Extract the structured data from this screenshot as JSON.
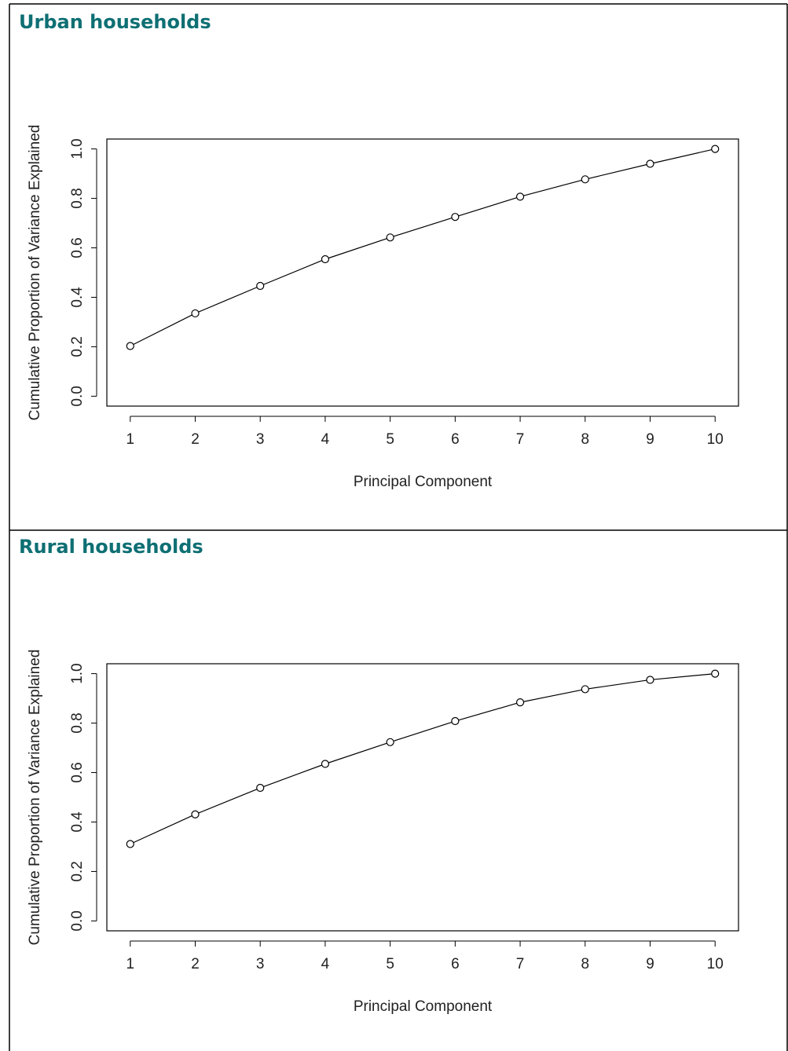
{
  "chart_data": [
    {
      "type": "line",
      "title": "Urban households",
      "xlabel": "Principal Component",
      "ylabel": "Cumulative Proportion of Variance Explained",
      "x": [
        1,
        2,
        3,
        4,
        5,
        6,
        7,
        8,
        9,
        10
      ],
      "values": [
        0.203,
        0.335,
        0.446,
        0.554,
        0.642,
        0.725,
        0.807,
        0.877,
        0.94,
        1.0
      ],
      "color": "#000000",
      "marker": "open-circle",
      "xlim": [
        0.64,
        10.36
      ],
      "ylim": [
        -0.04,
        1.04
      ],
      "xticks": [
        1,
        2,
        3,
        4,
        5,
        6,
        7,
        8,
        9,
        10
      ],
      "yticks": [
        {
          "value": 0,
          "label": "0.0"
        },
        0.2,
        0.4,
        0.6,
        0.8,
        {
          "value": 1,
          "label": "1.0"
        }
      ]
    },
    {
      "type": "line",
      "title": "Rural households",
      "xlabel": "Principal Component",
      "ylabel": "Cumulative Proportion of Variance Explained",
      "x": [
        1,
        2,
        3,
        4,
        5,
        6,
        7,
        8,
        9,
        10
      ],
      "values": [
        0.311,
        0.431,
        0.538,
        0.635,
        0.723,
        0.808,
        0.884,
        0.937,
        0.975,
        1.0
      ],
      "color": "#000000",
      "marker": "open-circle",
      "xlim": [
        0.64,
        10.36
      ],
      "ylim": [
        -0.04,
        1.04
      ],
      "xticks": [
        1,
        2,
        3,
        4,
        5,
        6,
        7,
        8,
        9,
        10
      ],
      "yticks": [
        {
          "value": 0,
          "label": "0.0"
        },
        0.2,
        0.4,
        0.6,
        0.8,
        {
          "value": 1,
          "label": "1.0"
        }
      ]
    }
  ]
}
